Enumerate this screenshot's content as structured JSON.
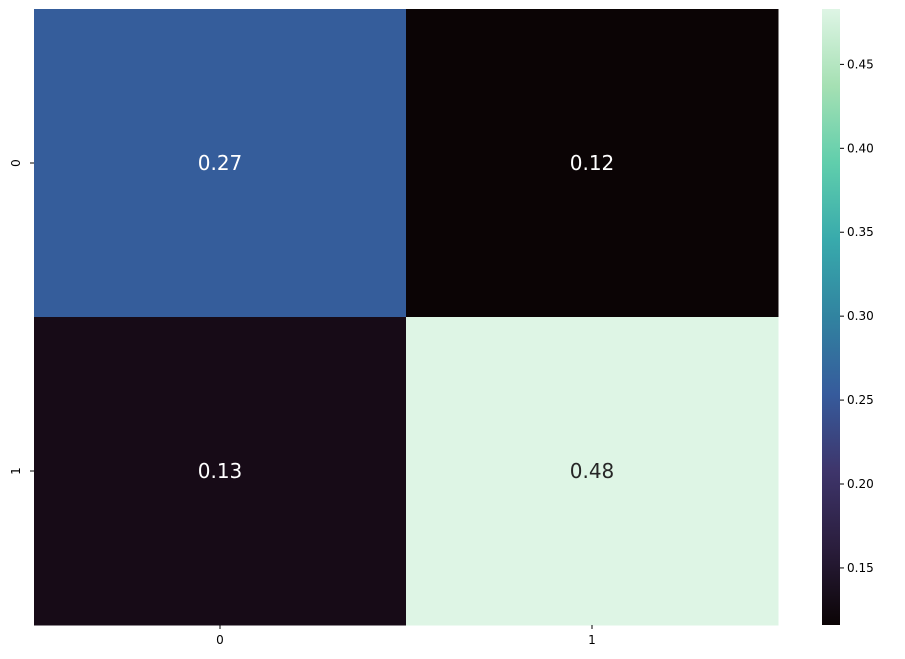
{
  "chart_data": {
    "type": "heatmap",
    "title": "",
    "xlabel": "",
    "ylabel": "",
    "x_categories": [
      "0",
      "1"
    ],
    "y_categories": [
      "0",
      "1"
    ],
    "values": [
      [
        0.27,
        0.12
      ],
      [
        0.13,
        0.48
      ]
    ],
    "annotations": [
      [
        "0.27",
        "0.12"
      ],
      [
        "0.13",
        "0.48"
      ]
    ],
    "colormap": "mako",
    "vmin": 0.116,
    "vmax": 0.483,
    "colorbar": {
      "ticks": [
        0.15,
        0.2,
        0.25,
        0.3,
        0.35,
        0.4,
        0.45
      ],
      "tick_labels": [
        "0.15",
        "0.20",
        "0.25",
        "0.30",
        "0.35",
        "0.40",
        "0.45"
      ]
    },
    "cell_colors": [
      [
        "#355d9b",
        "#0b0405"
      ],
      [
        "#170b17",
        "#def5e5"
      ]
    ],
    "annotation_colors": [
      [
        "#ffffff",
        "#ffffff"
      ],
      [
        "#ffffff",
        "#262626"
      ]
    ],
    "colorbar_stops": [
      "#0b0405",
      "#2a1d3c",
      "#3e356b",
      "#365b9c",
      "#3183a0",
      "#38aaac",
      "#60ceac",
      "#a5e0b3",
      "#def5e5"
    ]
  }
}
